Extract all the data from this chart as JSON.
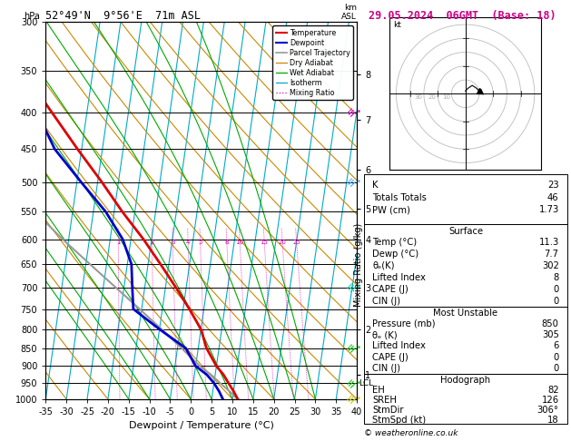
{
  "title_left": "52°49'N  9°56'E  71m ASL",
  "title_right": "29.05.2024  06GMT  (Base: 18)",
  "xlabel": "Dewpoint / Temperature (°C)",
  "pressure_levels_major": [
    300,
    350,
    400,
    450,
    500,
    550,
    600,
    650,
    700,
    750,
    800,
    850,
    900,
    950,
    1000
  ],
  "xlim": [
    -35,
    40
  ],
  "p_min": 300,
  "p_max": 1000,
  "skew_factor": 25.0,
  "km_labels": {
    "8": 355,
    "7": 410,
    "6": 480,
    "5": 545,
    "4": 600,
    "3": 700,
    "2": 800,
    "1": 925
  },
  "lcl_pressure": 950,
  "mixing_ratio_values": [
    1,
    2,
    3,
    4,
    5,
    8,
    10,
    15,
    20,
    25
  ],
  "isotherm_temps": [
    -35,
    -30,
    -25,
    -20,
    -15,
    -10,
    -5,
    0,
    5,
    10,
    15,
    20,
    25,
    30,
    35,
    40
  ],
  "dry_adiabat_thetas": [
    -40,
    -30,
    -20,
    -10,
    0,
    10,
    20,
    30,
    40,
    50,
    60,
    70,
    80,
    90,
    100,
    110,
    120
  ],
  "wet_adiabat_base_C": [
    -15,
    -10,
    -5,
    0,
    5,
    10,
    15,
    20,
    25,
    30
  ],
  "temp_profile_p": [
    1000,
    975,
    950,
    925,
    900,
    850,
    800,
    750,
    700,
    650,
    600,
    550,
    500,
    450,
    400,
    350,
    300
  ],
  "temp_profile_T": [
    11.3,
    10.0,
    8.5,
    7.0,
    5.0,
    2.0,
    0.0,
    -3.5,
    -7.5,
    -12.0,
    -17.0,
    -23.0,
    -29.0,
    -36.0,
    -43.5,
    -52.0,
    -61.0
  ],
  "dewp_profile_p": [
    1000,
    975,
    950,
    925,
    900,
    850,
    800,
    750,
    700,
    650,
    600,
    550,
    500,
    450,
    400,
    350,
    300
  ],
  "dewp_profile_T": [
    7.7,
    6.5,
    5.0,
    3.0,
    0.0,
    -3.0,
    -10.0,
    -17.0,
    -18.0,
    -19.0,
    -22.0,
    -27.0,
    -34.0,
    -41.5,
    -47.0,
    -55.0,
    -62.0
  ],
  "parcel_profile_p": [
    1000,
    975,
    950,
    925,
    900,
    850,
    800,
    750,
    700,
    650,
    600,
    550,
    500,
    450,
    400
  ],
  "parcel_profile_T": [
    11.3,
    9.0,
    6.5,
    4.0,
    1.0,
    -4.0,
    -9.5,
    -15.5,
    -22.0,
    -29.0,
    -36.5,
    -44.0,
    -52.0,
    -60.0,
    -68.0
  ],
  "color_temp": "#dd0000",
  "color_dewp": "#0000cc",
  "color_parcel": "#999999",
  "color_dry_adiabat": "#cc8800",
  "color_wet_adiabat": "#00aa00",
  "color_isotherm": "#00aacc",
  "color_mixing": "#dd00aa",
  "wind_barbs": [
    {
      "p": 400,
      "color": "#cc00cc"
    },
    {
      "p": 500,
      "color": "#44aaff"
    },
    {
      "p": 700,
      "color": "#00ccaa"
    },
    {
      "p": 850,
      "color": "#00cc00"
    },
    {
      "p": 950,
      "color": "#00cc00"
    },
    {
      "p": 1000,
      "color": "#cccc00"
    }
  ],
  "info": {
    "K": 23,
    "Totals_Totals": 46,
    "PW_cm": "1.73",
    "Surf_Temp": "11.3",
    "Surf_Dewp": "7.7",
    "theta_e": 302,
    "Lifted_Index": 8,
    "CAPE": 0,
    "CIN": 0,
    "MU_Pressure": 850,
    "MU_theta_e": 305,
    "MU_LI": 6,
    "MU_CAPE": 0,
    "MU_CIN": 0,
    "EH": 82,
    "SREH": 126,
    "StmDir": "306°",
    "StmSpd": 18
  }
}
